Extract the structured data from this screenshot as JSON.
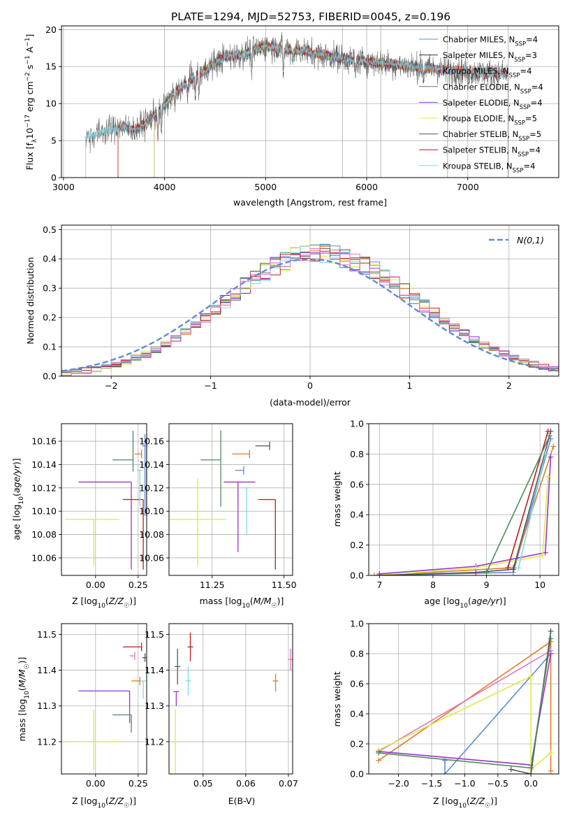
{
  "figure": {
    "title": "PLATE=1294, MJD=52753, FIBERID=0045, z=0.196"
  },
  "colors": {
    "Chabrier MILES": "#5b8bd8",
    "Salpeter MILES": "#333333",
    "Kroupa MILES": "#e07b2a",
    "Chabrier ELODIE": "#4f8a5b",
    "Salpeter ELODIE": "#9933cc",
    "Kroupa ELODIE": "#dde84a",
    "Chabrier STELIB": "#555555",
    "Salpeter STELIB": "#c01818",
    "Kroupa STELIB": "#7fd8e6",
    "pink": "#e377c2",
    "normal": "#5b8bd8"
  },
  "chart_data": [
    {
      "id": "spectrum",
      "type": "line",
      "xlabel": "wavelength [Angstrom, rest frame]",
      "ylabel": "Flux [f_λ10^-17 erg cm^-2 s^-1 A^-1]",
      "xlim": [
        2980,
        7900
      ],
      "ylim": [
        0,
        20.5
      ],
      "xticks": [
        3000,
        4000,
        5000,
        6000,
        7000
      ],
      "yticks": [
        0,
        5,
        10,
        15,
        20
      ],
      "grid": true,
      "legend_position": "right",
      "legend": [
        {
          "model": "Chabrier MILES",
          "nssp": "4"
        },
        {
          "model": "Salpeter MILES",
          "nssp": "3"
        },
        {
          "model": "Kroupa MILES",
          "nssp": "4"
        },
        {
          "model": "Chabrier ELODIE",
          "nssp": "4"
        },
        {
          "model": "Salpeter ELODIE",
          "nssp": "4"
        },
        {
          "model": "Kroupa ELODIE",
          "nssp": "5"
        },
        {
          "model": "Chabrier STELIB",
          "nssp": "5"
        },
        {
          "model": "Salpeter STELIB",
          "nssp": "4"
        },
        {
          "model": "Kroupa STELIB",
          "nssp": "4"
        }
      ],
      "series": [
        {
          "name": "Chabrier MILES",
          "x_start": 3540,
          "x_end": 7400
        },
        {
          "name": "Salpeter MILES",
          "x_start": 3540,
          "x_end": 7400
        },
        {
          "name": "Kroupa MILES",
          "x_start": 3540,
          "x_end": 7400
        },
        {
          "name": "Chabrier ELODIE",
          "x_start": 3900,
          "x_end": 6800
        },
        {
          "name": "Salpeter ELODIE",
          "x_start": 3900,
          "x_end": 6800
        },
        {
          "name": "Kroupa ELODIE",
          "x_start": 3900,
          "x_end": 6800
        },
        {
          "name": "Chabrier STELIB",
          "x_start": 3220,
          "x_end": 7400
        },
        {
          "name": "Salpeter STELIB",
          "x_start": 3540,
          "x_end": 7400
        },
        {
          "name": "Kroupa STELIB",
          "x_start": 3220,
          "x_end": 7400
        }
      ],
      "continuum": [
        [
          3220,
          5.4
        ],
        [
          3400,
          6.3
        ],
        [
          3600,
          6.9
        ],
        [
          3700,
          6.4
        ],
        [
          3800,
          7.2
        ],
        [
          3900,
          8.5
        ],
        [
          4000,
          9.8
        ],
        [
          4100,
          11.5
        ],
        [
          4200,
          12.5
        ],
        [
          4300,
          13.8
        ],
        [
          4400,
          14.5
        ],
        [
          4500,
          15.5
        ],
        [
          4600,
          16.3
        ],
        [
          4700,
          16.5
        ],
        [
          4800,
          16.8
        ],
        [
          4900,
          17.3
        ],
        [
          5000,
          17.8
        ],
        [
          5100,
          17.6
        ],
        [
          5200,
          17.3
        ],
        [
          5300,
          17.2
        ],
        [
          5400,
          17.1
        ],
        [
          5500,
          16.7
        ],
        [
          5600,
          16.5
        ],
        [
          5700,
          16.3
        ],
        [
          5800,
          16.0
        ],
        [
          6000,
          15.7
        ],
        [
          6200,
          15.4
        ],
        [
          6400,
          15.1
        ],
        [
          6600,
          14.8
        ],
        [
          6800,
          14.5
        ],
        [
          7000,
          14.3
        ],
        [
          7200,
          14.1
        ],
        [
          7400,
          14.0
        ],
        [
          7600,
          13.8
        ],
        [
          7850,
          13.6
        ]
      ],
      "absorption_lines": [
        [
          3934,
          3.5
        ],
        [
          3969,
          3.0
        ],
        [
          4102,
          2.0
        ],
        [
          4227,
          1.5
        ],
        [
          4305,
          3.0
        ],
        [
          4340,
          2.5
        ],
        [
          4861,
          2.5
        ],
        [
          5175,
          3.5
        ],
        [
          5270,
          1.2
        ],
        [
          5890,
          1.8
        ],
        [
          6563,
          1.5
        ],
        [
          7000,
          1.0
        ]
      ],
      "masked_lines": [
        5760,
        6140,
        6800,
        7400
      ]
    },
    {
      "id": "residuals",
      "type": "histogram",
      "xlabel": "(data-model)/error",
      "ylabel": "Normed distribution",
      "xlim": [
        -2.5,
        2.5
      ],
      "ylim": [
        0,
        0.515
      ],
      "xticks": [
        -2,
        -1,
        0,
        1,
        2
      ],
      "yticks": [
        0.0,
        0.1,
        0.2,
        0.3,
        0.4,
        0.5
      ],
      "grid": true,
      "legend_position": "upper right",
      "legend_label": "N(0,1)",
      "bin_width": 0.1,
      "bins_start": -2.5,
      "envelope_center": 0.08,
      "envelope_sigma": 0.97,
      "envelope_peak": 0.42
    },
    {
      "id": "age_vs_Z",
      "type": "errorbar",
      "xlabel": "Z [log10(Z/Z☉)]",
      "ylabel": "age [log10(age/yr)]",
      "xlim": [
        -0.2,
        0.3
      ],
      "ylim": [
        10.045,
        10.175
      ],
      "xticks": [
        0.0,
        0.25
      ],
      "yticks": [
        10.06,
        10.08,
        10.1,
        10.12,
        10.14,
        10.16
      ],
      "grid": true,
      "points": [
        {
          "model": "Kroupa ELODIE",
          "x": -0.01,
          "xerr": [
            0.17,
            0.15
          ],
          "y": 10.093,
          "yerr": [
            0.04,
            0.0
          ]
        },
        {
          "model": "Salpeter ELODIE",
          "x": 0.21,
          "xerr": [
            0.31,
            0.0
          ],
          "y": 10.125,
          "yerr": [
            0.075,
            0.0
          ]
        },
        {
          "model": "Chabrier ELODIE",
          "x": 0.22,
          "xerr": [
            0.12,
            0.0
          ],
          "y": 10.144,
          "yerr": [
            0.01,
            0.025
          ]
        },
        {
          "model": "Kroupa MILES",
          "x": 0.27,
          "xerr": [
            0.04,
            0.0
          ],
          "y": 10.149,
          "yerr": [
            0.0,
            0.0
          ]
        },
        {
          "model": "Salpeter STELIB",
          "x": 0.28,
          "xerr": [
            0.12,
            0.0
          ],
          "y": 10.11,
          "yerr": [
            0.06,
            0.0
          ]
        },
        {
          "model": "Chabrier MILES",
          "x": 0.29,
          "xerr": [
            0.0,
            0.0
          ],
          "y": 10.156,
          "yerr": [
            0.06,
            0.01
          ]
        },
        {
          "model": "Kroupa STELIB",
          "x": 0.26,
          "xerr": [
            0.0,
            0.0
          ],
          "y": 10.135,
          "yerr": [
            0.03,
            0.0
          ]
        },
        {
          "model": "Chabrier STELIB",
          "x": 0.3,
          "xerr": [
            0.0,
            0.0
          ],
          "y": 10.16,
          "yerr": [
            0.065,
            0.0
          ]
        }
      ]
    },
    {
      "id": "age_vs_mass",
      "type": "errorbar",
      "xlabel": "mass [log10(M/M☉)]",
      "ylabel": "",
      "xlim": [
        11.1,
        11.53
      ],
      "ylim": [
        10.045,
        10.175
      ],
      "xticks": [
        11.25,
        11.5
      ],
      "yticks": [
        10.06,
        10.08,
        10.1,
        10.12,
        10.14,
        10.16
      ],
      "grid": true,
      "points": [
        {
          "model": "Kroupa ELODIE",
          "x": 11.2,
          "xerr": [
            0.1,
            0.1
          ],
          "y": 10.093,
          "yerr": [
            0.04,
            0.035
          ]
        },
        {
          "model": "Chabrier ELODIE",
          "x": 11.28,
          "xerr": [
            0.07,
            0.0
          ],
          "y": 10.144,
          "yerr": [
            0.04,
            0.025
          ]
        },
        {
          "model": "Salpeter ELODIE",
          "x": 11.34,
          "xerr": [
            0.05,
            0.06
          ],
          "y": 10.125,
          "yerr": [
            0.06,
            0.0
          ]
        },
        {
          "model": "Kroupa MILES",
          "x": 11.38,
          "xerr": [
            0.06,
            0.0
          ],
          "y": 10.149,
          "yerr": [
            0.0,
            0.0
          ]
        },
        {
          "model": "Chabrier MILES",
          "x": 11.36,
          "xerr": [
            0.03,
            0.0
          ],
          "y": 10.135,
          "yerr": [
            0.0,
            0.0
          ]
        },
        {
          "model": "Kroupa STELIB",
          "x": 11.37,
          "xerr": [
            0.0,
            0.0
          ],
          "y": 10.12,
          "yerr": [
            0.04,
            0.0
          ]
        },
        {
          "model": "Salpeter STELIB",
          "x": 11.47,
          "xerr": [
            0.06,
            0.0
          ],
          "y": 10.11,
          "yerr": [
            0.06,
            0.0
          ]
        },
        {
          "model": "Chabrier STELIB",
          "x": 11.45,
          "xerr": [
            0.05,
            0.0
          ],
          "y": 10.156,
          "yerr": [
            0.0,
            0.0
          ]
        }
      ]
    },
    {
      "id": "weight_vs_age",
      "type": "line",
      "xlabel": "age [log10(age/yr)]",
      "ylabel": "mass weight",
      "xlim": [
        6.8,
        10.35
      ],
      "ylim": [
        0,
        1.0
      ],
      "xticks": [
        7,
        8,
        9,
        10
      ],
      "yticks": [
        0.0,
        0.2,
        0.4,
        0.6,
        0.8,
        1.0
      ],
      "grid": true,
      "series": [
        {
          "model": "Chabrier MILES",
          "points": [
            [
              7.0,
              0.0
            ],
            [
              9.5,
              0.02
            ],
            [
              10.2,
              0.9
            ]
          ]
        },
        {
          "model": "Kroupa MILES",
          "points": [
            [
              6.9,
              0.0
            ],
            [
              9.5,
              0.05
            ],
            [
              10.25,
              0.85
            ]
          ]
        },
        {
          "model": "Salpeter ELODIE",
          "points": [
            [
              7.0,
              0.01
            ],
            [
              8.8,
              0.06
            ],
            [
              10.1,
              0.15
            ],
            [
              10.2,
              0.78
            ]
          ]
        },
        {
          "model": "Kroupa ELODIE",
          "points": [
            [
              7.0,
              0.0
            ],
            [
              8.8,
              0.05
            ],
            [
              10.05,
              0.13
            ],
            [
              10.15,
              0.65
            ]
          ]
        },
        {
          "model": "Chabrier STELIB",
          "points": [
            [
              7.0,
              0.0
            ],
            [
              8.8,
              0.02
            ],
            [
              9.5,
              0.04
            ],
            [
              10.2,
              0.95
            ]
          ]
        },
        {
          "model": "Salpeter STELIB",
          "points": [
            [
              9.4,
              0.05
            ],
            [
              10.15,
              0.95
            ]
          ]
        },
        {
          "model": "Kroupa STELIB",
          "points": [
            [
              9.6,
              0.05
            ],
            [
              10.1,
              0.8
            ]
          ]
        },
        {
          "model": "Chabrier ELODIE",
          "points": [
            [
              9.0,
              0.02
            ],
            [
              10.18,
              0.92
            ]
          ]
        }
      ]
    },
    {
      "id": "mass_vs_Z",
      "type": "errorbar",
      "xlabel": "Z [log10(Z/Z☉)]",
      "ylabel": "mass [log10(M/M☉)]",
      "xlim": [
        -0.2,
        0.3
      ],
      "ylim": [
        11.11,
        11.53
      ],
      "xticks": [
        0.0,
        0.25
      ],
      "yticks": [
        11.2,
        11.3,
        11.4,
        11.5
      ],
      "grid": true,
      "points": [
        {
          "model": "Kroupa ELODIE",
          "x": -0.01,
          "xerr": [
            0.17,
            0.15
          ],
          "y": 11.2,
          "yerr": [
            0.08,
            0.09
          ]
        },
        {
          "model": "Salpeter ELODIE",
          "x": 0.2,
          "xerr": [
            0.3,
            0.0
          ],
          "y": 11.342,
          "yerr": [
            0.09,
            0.0
          ]
        },
        {
          "model": "Chabrier ELODIE",
          "x": 0.21,
          "xerr": [
            0.11,
            0.0
          ],
          "y": 11.275,
          "yerr": [
            0.05,
            0.0
          ]
        },
        {
          "model": "Kroupa MILES",
          "x": 0.26,
          "xerr": [
            0.05,
            0.0
          ],
          "y": 11.37,
          "yerr": [
            0.0,
            0.0
          ]
        },
        {
          "model": "pink",
          "x": 0.23,
          "xerr": [
            0.03,
            0.0
          ],
          "y": 11.44,
          "yerr": [
            0.0,
            0.0
          ]
        },
        {
          "model": "Salpeter STELIB",
          "x": 0.27,
          "xerr": [
            0.11,
            0.0
          ],
          "y": 11.465,
          "yerr": [
            0.0,
            0.0
          ]
        },
        {
          "model": "Kroupa STELIB",
          "x": 0.28,
          "xerr": [
            0.0,
            0.0
          ],
          "y": 11.37,
          "yerr": [
            0.05,
            0.0
          ]
        },
        {
          "model": "Chabrier STELIB",
          "x": 0.29,
          "xerr": [
            0.0,
            0.0
          ],
          "y": 11.435,
          "yerr": [
            0.0,
            0.0
          ]
        }
      ]
    },
    {
      "id": "mass_vs_ebv",
      "type": "errorbar",
      "xlabel": "E(B-V)",
      "ylabel": "",
      "xlim": [
        0.042,
        0.071
      ],
      "ylim": [
        11.11,
        11.53
      ],
      "xticks": [
        0.05,
        0.06,
        0.07
      ],
      "yticks": [
        11.2,
        11.3,
        11.4,
        11.5
      ],
      "grid": true,
      "points": [
        {
          "model": "Kroupa ELODIE",
          "x": 0.0435,
          "y": 11.2,
          "yerr": [
            0.09,
            0.09
          ]
        },
        {
          "model": "Salpeter ELODIE",
          "x": 0.0437,
          "y": 11.34,
          "yerr": [
            0.04,
            0.0
          ]
        },
        {
          "model": "Chabrier STELIB",
          "x": 0.044,
          "y": 11.41,
          "yerr": [
            0.05,
            0.05
          ]
        },
        {
          "model": "Kroupa STELIB",
          "x": 0.0465,
          "y": 11.37,
          "yerr": [
            0.04,
            0.04
          ]
        },
        {
          "model": "Salpeter STELIB",
          "x": 0.047,
          "y": 11.465,
          "yerr": [
            0.04,
            0.04
          ]
        },
        {
          "model": "Kroupa MILES",
          "x": 0.067,
          "y": 11.37,
          "yerr": [
            0.03,
            0.02
          ]
        },
        {
          "model": "pink",
          "x": 0.0705,
          "y": 11.43,
          "yerr": [
            0.03,
            0.03
          ]
        }
      ]
    },
    {
      "id": "weight_vs_Z",
      "type": "line",
      "xlabel": "Z [log10(Z/Z☉)]",
      "ylabel": "mass weight",
      "xlim": [
        -2.45,
        0.42
      ],
      "ylim": [
        0,
        1.0
      ],
      "xticks": [
        -2.0,
        -1.5,
        -1.0,
        -0.5,
        0.0
      ],
      "yticks": [
        0.0,
        0.2,
        0.4,
        0.6,
        0.8,
        1.0
      ],
      "grid": true,
      "series": [
        {
          "model": "Chabrier MILES",
          "points": [
            [
              -1.3,
              0.09
            ],
            [
              -1.3,
              0.0
            ],
            [
              0.3,
              0.8
            ]
          ]
        },
        {
          "model": "Kroupa MILES",
          "points": [
            [
              -2.3,
              0.09
            ],
            [
              0.3,
              0.88
            ],
            [
              0.3,
              0.02
            ]
          ]
        },
        {
          "model": "pink",
          "points": [
            [
              -2.3,
              0.15
            ],
            [
              0.3,
              0.82
            ]
          ]
        },
        {
          "model": "Salpeter ELODIE",
          "points": [
            [
              -2.3,
              0.15
            ],
            [
              0.0,
              0.06
            ],
            [
              0.3,
              0.8
            ]
          ]
        },
        {
          "model": "Kroupa ELODIE",
          "points": [
            [
              -2.3,
              0.16
            ],
            [
              0.0,
              0.65
            ],
            [
              0.0,
              0.03
            ],
            [
              0.3,
              0.14
            ]
          ]
        },
        {
          "model": "Chabrier STELIB",
          "points": [
            [
              -0.3,
              0.03
            ],
            [
              0.0,
              0.0
            ],
            [
              0.3,
              0.95
            ]
          ]
        },
        {
          "model": "Chabrier ELODIE",
          "points": [
            [
              -2.3,
              0.14
            ],
            [
              0.0,
              0.04
            ],
            [
              0.3,
              0.9
            ]
          ]
        }
      ]
    }
  ]
}
